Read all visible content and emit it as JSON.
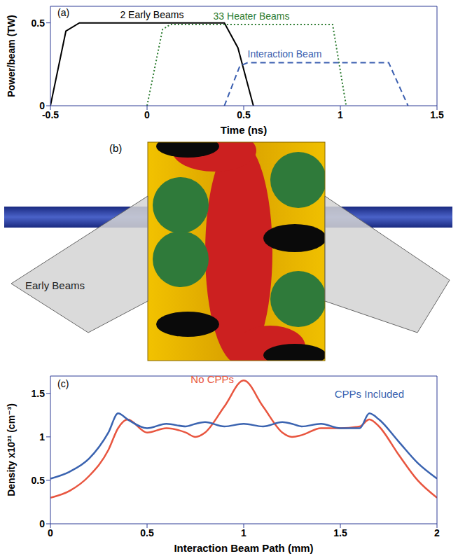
{
  "chart_data": [
    {
      "type": "line",
      "panel_label": "(a)",
      "x_label": "Time (ns)",
      "y_label": "Power/beam (TW)",
      "xlim": [
        -0.5,
        1.5
      ],
      "xticks": [
        -0.5,
        0,
        0.5,
        1,
        1.5
      ],
      "ylim": [
        0,
        0.6
      ],
      "yticks": [
        0,
        0.5
      ],
      "series": [
        {
          "name": "2 Early Beams",
          "color": "#000000",
          "line_style": "solid",
          "x": [
            -0.5,
            -0.42,
            -0.35,
            0.4,
            0.47,
            0.55
          ],
          "values": [
            0,
            0.45,
            0.5,
            0.5,
            0.35,
            0
          ]
        },
        {
          "name": "33 Heater Beams",
          "color": "#2e7d32",
          "line_style": "dotted",
          "x": [
            0,
            0.08,
            0.12,
            0.96,
            1.03
          ],
          "values": [
            0,
            0.46,
            0.49,
            0.49,
            0
          ]
        },
        {
          "name": "Interaction Beam",
          "color": "#3b5fb0",
          "line_style": "dashed",
          "x": [
            0.4,
            0.48,
            0.52,
            1.25,
            1.35
          ],
          "values": [
            0,
            0.24,
            0.26,
            0.26,
            0
          ]
        }
      ]
    },
    {
      "type": "line",
      "panel_label": "(c)",
      "x_label": "Interaction Beam Path (mm)",
      "y_label": "Density x10²¹ (cm⁻³)",
      "xlim": [
        0,
        2
      ],
      "xticks": [
        0,
        0.5,
        1,
        1.5,
        2
      ],
      "ylim": [
        0,
        1.7
      ],
      "yticks": [
        0,
        0.5,
        1,
        1.5
      ],
      "x": [
        0,
        0.1,
        0.2,
        0.3,
        0.35,
        0.4,
        0.5,
        0.6,
        0.7,
        0.75,
        0.8,
        0.9,
        1.0,
        1.1,
        1.2,
        1.25,
        1.3,
        1.4,
        1.5,
        1.6,
        1.65,
        1.7,
        1.8,
        1.9,
        2.0
      ],
      "series": [
        {
          "name": "No CPPs",
          "color": "#e8553f",
          "line_style": "solid",
          "values": [
            0.3,
            0.38,
            0.55,
            0.85,
            1.1,
            1.2,
            1.05,
            1.1,
            1.05,
            1.0,
            1.05,
            1.35,
            1.65,
            1.35,
            1.05,
            1.0,
            1.02,
            1.1,
            1.1,
            1.12,
            1.2,
            1.12,
            0.8,
            0.5,
            0.3
          ]
        },
        {
          "name": "CPPs Included",
          "color": "#3a63b0",
          "line_style": "solid",
          "values": [
            0.52,
            0.6,
            0.75,
            1.05,
            1.27,
            1.2,
            1.1,
            1.15,
            1.12,
            1.15,
            1.17,
            1.12,
            1.15,
            1.12,
            1.17,
            1.15,
            1.12,
            1.15,
            1.1,
            1.1,
            1.27,
            1.2,
            0.95,
            0.7,
            0.52
          ]
        }
      ]
    }
  ],
  "diagram": {
    "panel_label": "(b)",
    "annotations": [
      "Early Beams"
    ]
  }
}
